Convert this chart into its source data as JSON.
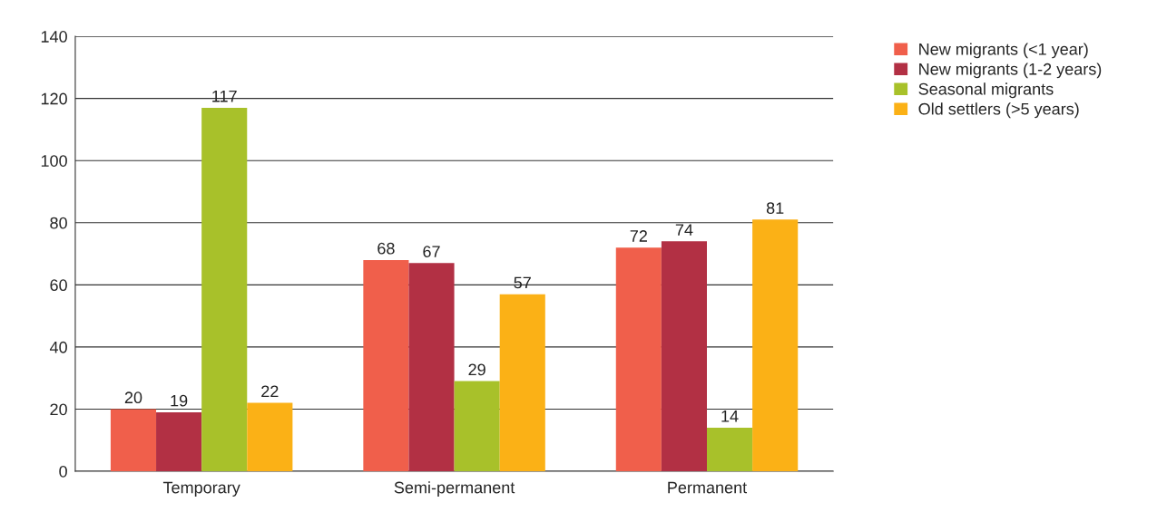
{
  "chart_data": {
    "type": "bar",
    "categories": [
      "Temporary",
      "Semi-permanent",
      "Permanent"
    ],
    "series": [
      {
        "name": "New migrants (<1 year)",
        "color": "#f05f4b",
        "values": [
          20,
          68,
          72
        ]
      },
      {
        "name": "New migrants (1-2 years)",
        "color": "#b23044",
        "values": [
          19,
          67,
          74
        ]
      },
      {
        "name": "Seasonal migrants",
        "color": "#a8c12a",
        "values": [
          117,
          29,
          14
        ]
      },
      {
        "name": "Old settlers (>5 years)",
        "color": "#fbb116",
        "values": [
          22,
          57,
          81
        ]
      }
    ],
    "ylim": [
      0,
      140
    ],
    "yticks": [
      0,
      20,
      40,
      60,
      80,
      100,
      120,
      140
    ],
    "grid": "y",
    "legend": "top right",
    "data_labels": true
  }
}
